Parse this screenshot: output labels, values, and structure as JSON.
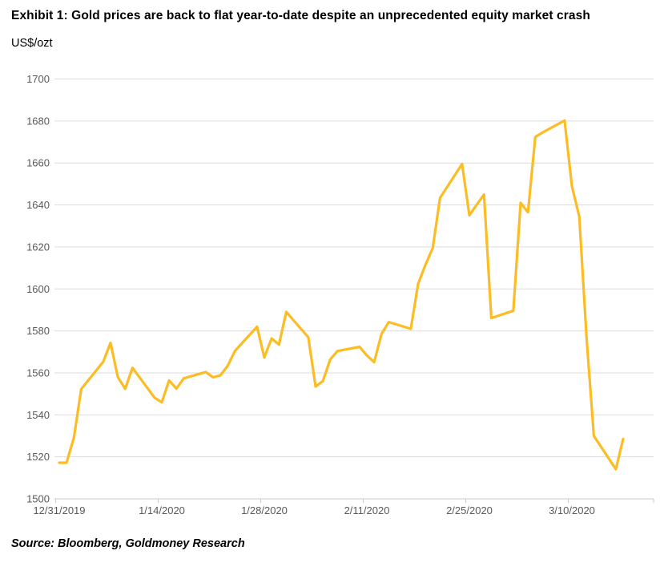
{
  "header": {
    "title": "Exhibit 1: Gold prices are back to flat year-to-date despite an unprecedented equity market crash",
    "units_label": "US$/ozt"
  },
  "footer": {
    "source": "Source: Bloomberg, Goldmoney Research"
  },
  "chart_data": {
    "type": "line",
    "title": "Exhibit 1: Gold prices are back to flat year-to-date despite an unprecedented equity market crash",
    "ylabel": "US$/ozt",
    "xlabel": "",
    "ylim": [
      1500,
      1700
    ],
    "yticks": [
      1500,
      1520,
      1540,
      1560,
      1580,
      1600,
      1620,
      1640,
      1660,
      1680,
      1700
    ],
    "xticks": [
      "12/31/2019",
      "1/14/2020",
      "1/28/2020",
      "2/11/2020",
      "2/25/2020",
      "3/10/2020"
    ],
    "grid": "horizontal",
    "legend": "none",
    "line_color": "#FBBC24",
    "grid_color": "#DCDCDC",
    "axis_color": "#C8C8C8",
    "tick_label_color": "#595959",
    "series": [
      {
        "name": "Gold price (US$/ozt)",
        "color": "#FBBC24",
        "points": [
          [
            "12/31/2019",
            1517.2
          ],
          [
            "1/1/2020",
            1517.2
          ],
          [
            "1/2/2020",
            1529.2
          ],
          [
            "1/3/2020",
            1552.3
          ],
          [
            "1/6/2020",
            1565.3
          ],
          [
            "1/7/2020",
            1574.3
          ],
          [
            "1/8/2020",
            1558.0
          ],
          [
            "1/9/2020",
            1552.4
          ],
          [
            "1/10/2020",
            1562.4
          ],
          [
            "1/13/2020",
            1548.2
          ],
          [
            "1/14/2020",
            1546.0
          ],
          [
            "1/15/2020",
            1556.4
          ],
          [
            "1/16/2020",
            1552.5
          ],
          [
            "1/17/2020",
            1557.4
          ],
          [
            "1/20/2020",
            1560.4
          ],
          [
            "1/21/2020",
            1557.9
          ],
          [
            "1/22/2020",
            1558.8
          ],
          [
            "1/23/2020",
            1563.4
          ],
          [
            "1/24/2020",
            1570.5
          ],
          [
            "1/27/2020",
            1582.0
          ],
          [
            "1/28/2020",
            1567.4
          ],
          [
            "1/29/2020",
            1576.4
          ],
          [
            "1/30/2020",
            1573.5
          ],
          [
            "1/31/2020",
            1589.0
          ],
          [
            "2/3/2020",
            1577.0
          ],
          [
            "2/4/2020",
            1553.5
          ],
          [
            "2/5/2020",
            1556.1
          ],
          [
            "2/6/2020",
            1566.4
          ],
          [
            "2/7/2020",
            1570.4
          ],
          [
            "2/10/2020",
            1572.4
          ],
          [
            "2/11/2020",
            1568.3
          ],
          [
            "2/12/2020",
            1565.1
          ],
          [
            "2/13/2020",
            1578.5
          ],
          [
            "2/14/2020",
            1584.2
          ],
          [
            "2/17/2020",
            1581.0
          ],
          [
            "2/18/2020",
            1602.4
          ],
          [
            "2/19/2020",
            1611.5
          ],
          [
            "2/20/2020",
            1619.5
          ],
          [
            "2/21/2020",
            1643.4
          ],
          [
            "2/24/2020",
            1659.5
          ],
          [
            "2/25/2020",
            1635.1
          ],
          [
            "2/26/2020",
            1640.1
          ],
          [
            "2/27/2020",
            1645.0
          ],
          [
            "2/28/2020",
            1586.1
          ],
          [
            "3/2/2020",
            1589.6
          ],
          [
            "3/3/2020",
            1641.0
          ],
          [
            "3/4/2020",
            1636.5
          ],
          [
            "3/5/2020",
            1672.4
          ],
          [
            "3/6/2020",
            1674.5
          ],
          [
            "3/9/2020",
            1680.2
          ],
          [
            "3/10/2020",
            1649.0
          ],
          [
            "3/11/2020",
            1634.6
          ],
          [
            "3/12/2020",
            1577.0
          ],
          [
            "3/13/2020",
            1530.0
          ],
          [
            "3/16/2020",
            1514.1
          ],
          [
            "3/17/2020",
            1528.5
          ]
        ]
      }
    ]
  }
}
